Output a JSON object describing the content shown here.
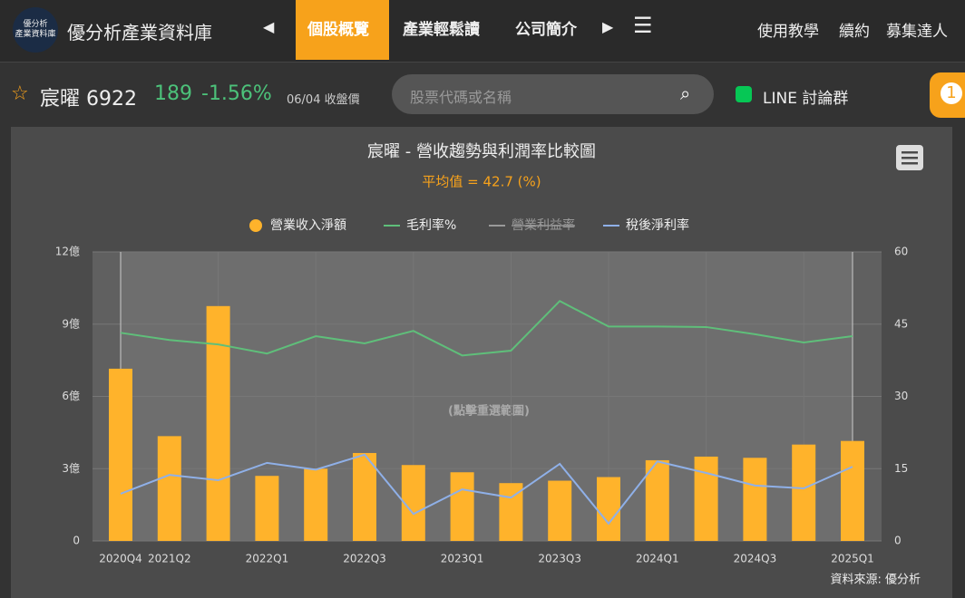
{
  "header": {
    "logo": "優分析\n產業資料庫",
    "site_name": "優分析產業資料庫",
    "tabs": [
      "個股概覽",
      "產業輕鬆讀",
      "公司簡介"
    ],
    "links": [
      "使用教學",
      "續約",
      "募集達人"
    ]
  },
  "stock": {
    "name": "宸曜 6922",
    "price": "189",
    "change": "-1.56%",
    "date": "06/04 收盤價",
    "search_placeholder": "股票代碼或名稱",
    "line_group": "LINE 討論群",
    "badge": "1"
  },
  "chart_data": {
    "type": "bar",
    "title": "宸曜 - 營收趨勢與利潤率比較圖",
    "subtitle": "平均值 = 42.7 (%)",
    "annotation": "(點擊重選範圍)",
    "source": "資料來源: 優分析",
    "categories": [
      "2020Q4",
      "2021Q2",
      null,
      "2022Q1",
      null,
      "2022Q3",
      null,
      "2023Q1",
      null,
      "2023Q3",
      null,
      "2024Q1",
      null,
      "2024Q3",
      null,
      "2025Q1"
    ],
    "series": [
      {
        "name": "營業收入淨額",
        "type": "bar",
        "color": "#ffb32b",
        "values": [
          7.15,
          4.35,
          9.75,
          2.7,
          3.0,
          3.65,
          3.15,
          2.85,
          2.4,
          2.5,
          2.65,
          3.35,
          3.5,
          3.45,
          4.0,
          4.15
        ]
      },
      {
        "name": "毛利率%",
        "type": "line",
        "axis": "y2",
        "color": "#5fbf7a",
        "values": [
          43.2,
          41.7,
          40.8,
          38.9,
          42.5,
          41.0,
          43.6,
          38.5,
          39.5,
          49.8,
          44.5,
          44.5,
          44.4,
          42.9,
          41.2,
          42.5
        ]
      },
      {
        "name": "營業利益率",
        "type": "line",
        "axis": "y2",
        "color": "#cccccc",
        "hidden": true
      },
      {
        "name": "稅後淨利率",
        "type": "line",
        "axis": "y2",
        "color": "#8fb0e8",
        "values": [
          9.8,
          13.7,
          12.6,
          16.2,
          14.8,
          17.9,
          5.6,
          10.7,
          9.0,
          16.0,
          3.6,
          16.5,
          14.1,
          11.5,
          10.9,
          15.4
        ]
      }
    ],
    "ylim": [
      0,
      12
    ],
    "yticks": [
      0,
      {
        "value": 3,
        "label": "3億"
      },
      {
        "value": 6,
        "label": "6億"
      },
      {
        "value": 9,
        "label": "9億"
      },
      {
        "value": 12,
        "label": "12億"
      }
    ],
    "y2lim": [
      0,
      60
    ],
    "y2ticks": [
      0,
      15,
      30,
      45,
      60
    ],
    "grid": true
  }
}
